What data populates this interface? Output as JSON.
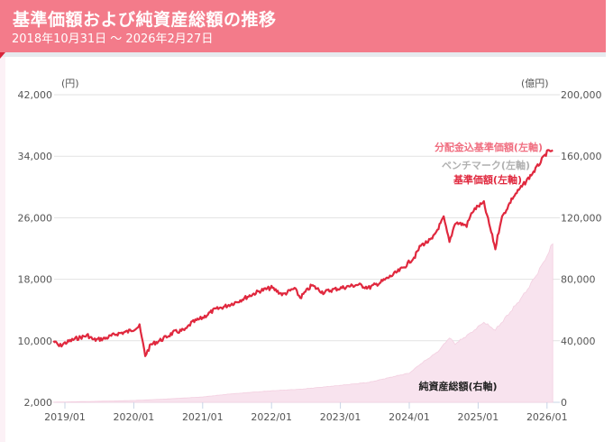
{
  "header": {
    "title": "基準価額および純資産総額の推移",
    "date_range": "2018年10月31日 ～ 2026年2月27日"
  },
  "colors": {
    "header_bg": "#f37b8a",
    "nav_line": "#e0283e",
    "distribution_line": "#f06e80",
    "benchmark_label": "#b0b0b0",
    "aum_fill": "#f8e3ee",
    "aum_edge": "#f3cfe0"
  },
  "chart_data": {
    "type": "line",
    "title": "基準価額および純資産総額の推移",
    "subtitle": "2018年10月31日 ～ 2026年2月27日",
    "left_axis": {
      "unit": "(円)",
      "ticks": [
        "42,000",
        "34,000",
        "26,000",
        "18,000",
        "10,000",
        "2,000"
      ],
      "range": [
        2000,
        42000
      ]
    },
    "right_axis": {
      "unit": "(億円)",
      "ticks": [
        "200,000",
        "160,000",
        "120,000",
        "80,000",
        "40,000",
        "0"
      ],
      "range": [
        0,
        200000
      ]
    },
    "x_ticks": [
      "2019/01",
      "2020/01",
      "2021/01",
      "2022/01",
      "2023/01",
      "2024/01",
      "2025/01",
      "2026/01"
    ],
    "grid": true,
    "legend_labels": {
      "distribution_adjusted": "分配金込基準価額(左軸)",
      "benchmark": "ベンチマーク(左軸)",
      "nav": "基準価額(左軸)",
      "aum": "純資産総額(右軸)"
    },
    "series": [
      {
        "name": "基準価額(左軸)",
        "axis": "left",
        "x": [
          "2018/11",
          "2018/12",
          "2019/01",
          "2019/03",
          "2019/05",
          "2019/06",
          "2019/08",
          "2019/10",
          "2019/12",
          "2020/02",
          "2020/03",
          "2020/04",
          "2020/06",
          "2020/08",
          "2020/10",
          "2020/11",
          "2021/01",
          "2021/03",
          "2021/05",
          "2021/07",
          "2021/09",
          "2021/11",
          "2022/01",
          "2022/03",
          "2022/05",
          "2022/06",
          "2022/08",
          "2022/10",
          "2022/12",
          "2023/02",
          "2023/04",
          "2023/06",
          "2023/08",
          "2023/10",
          "2023/12",
          "2024/02",
          "2024/03",
          "2024/05",
          "2024/07",
          "2024/08",
          "2024/09",
          "2024/11",
          "2024/12",
          "2025/01",
          "2025/02",
          "2025/04",
          "2025/05",
          "2025/07",
          "2025/09",
          "2025/11",
          "2026/01",
          "2026/02"
        ],
        "values": [
          10000,
          9300,
          9700,
          10300,
          10700,
          10100,
          10300,
          10900,
          11200,
          11900,
          8100,
          9500,
          10200,
          11100,
          11400,
          12300,
          13000,
          14000,
          14500,
          15100,
          15800,
          16500,
          16900,
          16000,
          16800,
          15600,
          17200,
          16300,
          16700,
          17000,
          17300,
          16900,
          17600,
          18500,
          19500,
          21000,
          22400,
          23200,
          26000,
          22800,
          25400,
          25000,
          26800,
          27500,
          27900,
          22000,
          25800,
          28600,
          30400,
          32300,
          34500,
          34800
        ]
      },
      {
        "name": "純資産総額(右軸)",
        "axis": "right",
        "x": [
          "2018/11",
          "2019/06",
          "2020/01",
          "2020/06",
          "2021/01",
          "2021/06",
          "2022/01",
          "2022/06",
          "2023/01",
          "2023/06",
          "2023/10",
          "2024/01",
          "2024/03",
          "2024/06",
          "2024/08",
          "2024/09",
          "2024/12",
          "2025/02",
          "2025/04",
          "2025/06",
          "2025/09",
          "2025/12",
          "2026/02"
        ],
        "values": [
          100,
          600,
          1200,
          2000,
          3500,
          5500,
          7500,
          8500,
          11000,
          13000,
          16500,
          19000,
          25000,
          33000,
          42000,
          38000,
          46000,
          52000,
          47000,
          56000,
          70000,
          88000,
          103000
        ]
      }
    ]
  }
}
